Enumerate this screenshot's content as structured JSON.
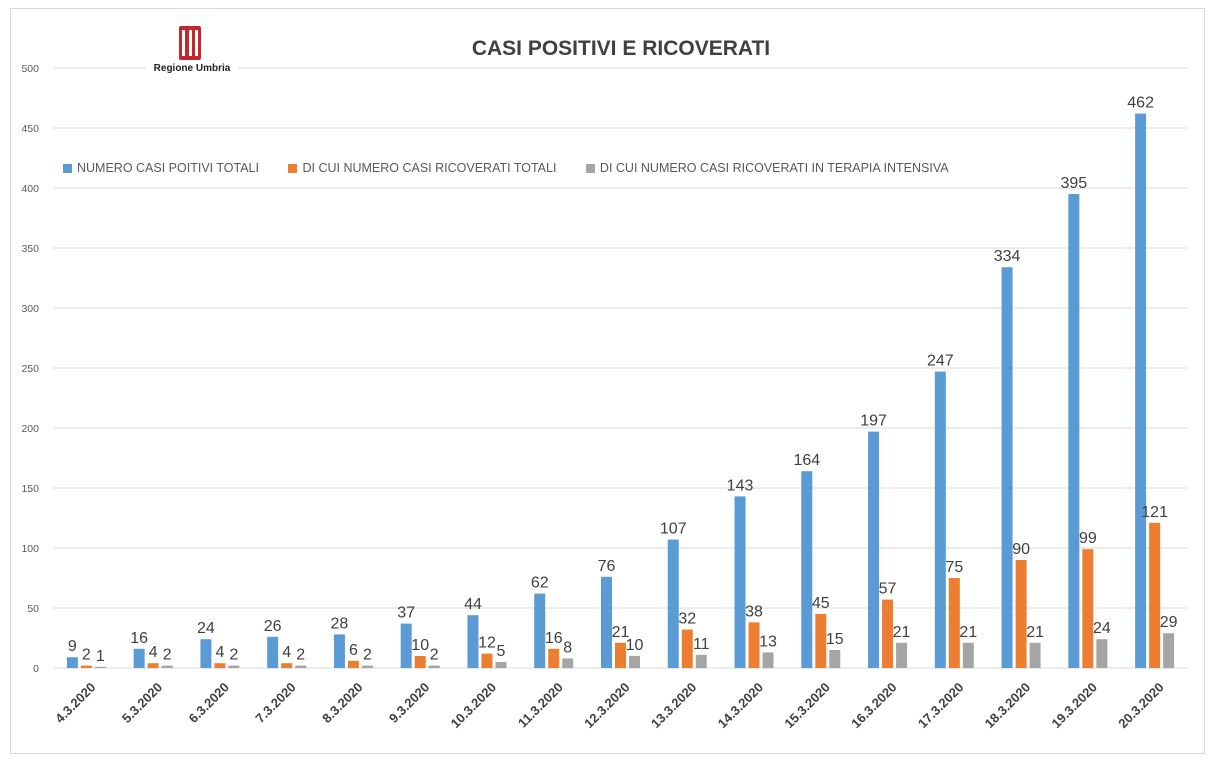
{
  "logo": {
    "name": "Regione Umbria"
  },
  "chart_data": {
    "type": "bar",
    "title": "CASI POSITIVI  E RICOVERATI",
    "xlabel": "",
    "ylabel": "",
    "ylim": [
      0,
      500
    ],
    "yticks": [
      "0",
      "50",
      "100",
      "150",
      "200",
      "250",
      "300",
      "350",
      "400",
      "450",
      "500"
    ],
    "legend_position": "top-left",
    "grid": true,
    "categories": [
      "4.3.2020",
      "5.3.2020",
      "6.3.2020",
      "7.3.2020",
      "8.3.2020",
      "9.3.2020",
      "10.3.2020",
      "11.3.2020",
      "12.3.2020",
      "13.3.2020",
      "14.3.2020",
      "15.3.2020",
      "16.3.2020",
      "17.3.2020",
      "18.3.2020",
      "19.3.2020",
      "20.3.2020"
    ],
    "series": [
      {
        "name": "NUMERO CASI POITIVI TOTALI",
        "color": "#5b9bd5",
        "values": [
          9,
          16,
          24,
          26,
          28,
          37,
          44,
          62,
          76,
          107,
          143,
          164,
          197,
          247,
          334,
          395,
          462
        ]
      },
      {
        "name": "DI CUI NUMERO CASI RICOVERATI TOTALI",
        "color": "#ed7d31",
        "values": [
          2,
          4,
          4,
          4,
          6,
          10,
          12,
          16,
          21,
          32,
          38,
          45,
          57,
          75,
          90,
          99,
          121
        ]
      },
      {
        "name": "DI CUI NUMERO CASI RICOVERATI IN TERAPIA INTENSIVA",
        "color": "#a5a5a5",
        "values": [
          1,
          2,
          2,
          2,
          2,
          2,
          5,
          8,
          10,
          11,
          13,
          15,
          21,
          21,
          21,
          24,
          29
        ]
      }
    ]
  }
}
